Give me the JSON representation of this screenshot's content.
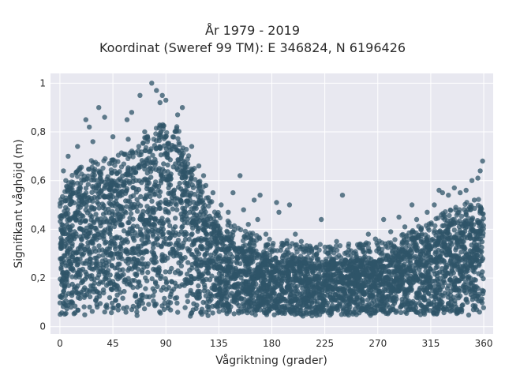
{
  "chart_data": {
    "type": "scatter",
    "title": "År 1979 - 2019",
    "subtitle": "Koordinat (Sweref 99 TM): E 346824, N 6196426",
    "xlabel": "Vågriktning (grader)",
    "ylabel": "Signifikant våghöjd (m)",
    "xlim": [
      -8,
      368
    ],
    "ylim": [
      -0.03,
      1.04
    ],
    "x_ticks": [
      0,
      45,
      90,
      135,
      180,
      225,
      270,
      315,
      360
    ],
    "y_ticks": [
      0,
      0.2,
      0.4,
      0.6,
      0.8,
      1
    ],
    "y_tick_labels": [
      "0",
      "0,2",
      "0,4",
      "0,6",
      "0,8",
      "1"
    ],
    "grid": true,
    "marker_color": "#2f5468",
    "background_color": "#e8e8f0",
    "envelope": {
      "direction": [
        0,
        10,
        20,
        30,
        45,
        60,
        70,
        80,
        90,
        100,
        110,
        120,
        130,
        140,
        150,
        160,
        180,
        200,
        225,
        250,
        270,
        290,
        300,
        315,
        330,
        345,
        355,
        360
      ],
      "upper_height": [
        0.45,
        0.56,
        0.6,
        0.62,
        0.63,
        0.66,
        0.7,
        0.74,
        0.78,
        0.75,
        0.64,
        0.52,
        0.44,
        0.38,
        0.34,
        0.32,
        0.29,
        0.28,
        0.27,
        0.27,
        0.28,
        0.31,
        0.33,
        0.37,
        0.41,
        0.44,
        0.46,
        0.46
      ],
      "lower_height": 0.05
    },
    "outliers": [
      {
        "x": 78,
        "y": 1.0
      },
      {
        "x": 82,
        "y": 0.97
      },
      {
        "x": 87,
        "y": 0.95
      },
      {
        "x": 68,
        "y": 0.95
      },
      {
        "x": 85,
        "y": 0.92
      },
      {
        "x": 90,
        "y": 0.93
      },
      {
        "x": 104,
        "y": 0.9
      },
      {
        "x": 100,
        "y": 0.87
      },
      {
        "x": 33,
        "y": 0.9
      },
      {
        "x": 22,
        "y": 0.85
      },
      {
        "x": 38,
        "y": 0.86
      },
      {
        "x": 61,
        "y": 0.88
      },
      {
        "x": 57,
        "y": 0.85
      },
      {
        "x": 25,
        "y": 0.82
      },
      {
        "x": 58,
        "y": 0.77
      },
      {
        "x": 72,
        "y": 0.8
      },
      {
        "x": 15,
        "y": 0.74
      },
      {
        "x": 28,
        "y": 0.76
      },
      {
        "x": 7,
        "y": 0.7
      },
      {
        "x": 3,
        "y": 0.64
      },
      {
        "x": 5,
        "y": 0.6
      },
      {
        "x": 45,
        "y": 0.78
      },
      {
        "x": 112,
        "y": 0.74
      },
      {
        "x": 118,
        "y": 0.66
      },
      {
        "x": 122,
        "y": 0.62
      },
      {
        "x": 124,
        "y": 0.58
      },
      {
        "x": 130,
        "y": 0.55
      },
      {
        "x": 126,
        "y": 0.53
      },
      {
        "x": 137,
        "y": 0.5
      },
      {
        "x": 143,
        "y": 0.47
      },
      {
        "x": 147,
        "y": 0.55
      },
      {
        "x": 153,
        "y": 0.62
      },
      {
        "x": 156,
        "y": 0.48
      },
      {
        "x": 160,
        "y": 0.42
      },
      {
        "x": 165,
        "y": 0.52
      },
      {
        "x": 170,
        "y": 0.54
      },
      {
        "x": 168,
        "y": 0.44
      },
      {
        "x": 175,
        "y": 0.38
      },
      {
        "x": 184,
        "y": 0.51
      },
      {
        "x": 186,
        "y": 0.47
      },
      {
        "x": 195,
        "y": 0.5
      },
      {
        "x": 200,
        "y": 0.38
      },
      {
        "x": 205,
        "y": 0.35
      },
      {
        "x": 214,
        "y": 0.32
      },
      {
        "x": 222,
        "y": 0.44
      },
      {
        "x": 240,
        "y": 0.54
      },
      {
        "x": 235,
        "y": 0.35
      },
      {
        "x": 245,
        "y": 0.33
      },
      {
        "x": 255,
        "y": 0.34
      },
      {
        "x": 262,
        "y": 0.38
      },
      {
        "x": 268,
        "y": 0.36
      },
      {
        "x": 275,
        "y": 0.44
      },
      {
        "x": 281,
        "y": 0.39
      },
      {
        "x": 288,
        "y": 0.45
      },
      {
        "x": 293,
        "y": 0.41
      },
      {
        "x": 299,
        "y": 0.5
      },
      {
        "x": 303,
        "y": 0.44
      },
      {
        "x": 307,
        "y": 0.4
      },
      {
        "x": 312,
        "y": 0.47
      },
      {
        "x": 318,
        "y": 0.5
      },
      {
        "x": 322,
        "y": 0.56
      },
      {
        "x": 325,
        "y": 0.55
      },
      {
        "x": 330,
        "y": 0.54
      },
      {
        "x": 335,
        "y": 0.57
      },
      {
        "x": 340,
        "y": 0.55
      },
      {
        "x": 345,
        "y": 0.56
      },
      {
        "x": 350,
        "y": 0.6
      },
      {
        "x": 355,
        "y": 0.61
      },
      {
        "x": 357,
        "y": 0.64
      },
      {
        "x": 359,
        "y": 0.68
      },
      {
        "x": 352,
        "y": 0.52
      },
      {
        "x": 348,
        "y": 0.49
      }
    ]
  }
}
